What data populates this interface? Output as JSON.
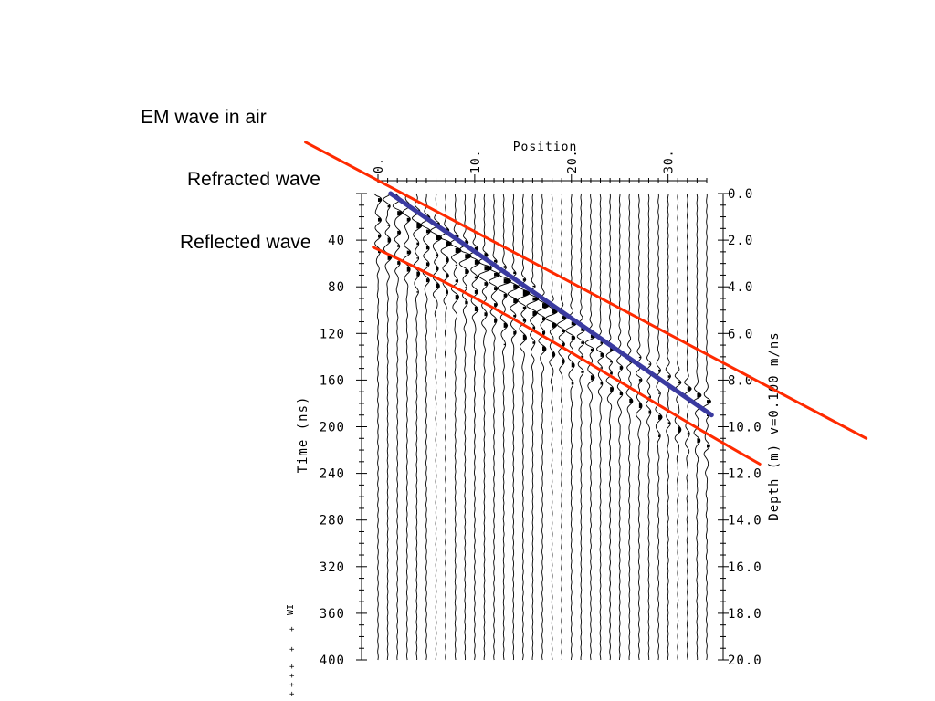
{
  "labels": {
    "em_wave": "EM wave in air",
    "refracted": "Refracted wave",
    "reflected": "Reflected wave"
  },
  "colors": {
    "em_line": "#ff2a00",
    "refracted_line": "#3a3aa0",
    "reflected_line": "#ff2a00",
    "trace": "#000000"
  },
  "chart_data": {
    "type": "radargram",
    "title": "Position",
    "xlabel": "Position",
    "ylabel_left": "Time (ns)",
    "ylabel_right": "Depth (m) v=0.100 m/ns",
    "x_ticks": [
      "0.",
      "10.",
      "20.",
      "30."
    ],
    "x_tick_values": [
      0,
      10,
      20,
      30
    ],
    "xlim": [
      0,
      34
    ],
    "trace_positions": [
      0,
      1,
      2,
      3,
      4,
      5,
      6,
      7,
      8,
      9,
      10,
      11,
      12,
      13,
      14,
      15,
      16,
      17,
      18,
      19,
      20,
      21,
      22,
      23,
      24,
      25,
      26,
      27,
      28,
      29,
      30,
      31,
      32,
      33,
      34
    ],
    "time_ticks": [
      "40",
      "80",
      "120",
      "160",
      "200",
      "240",
      "280",
      "320",
      "360",
      "400"
    ],
    "time_tick_values": [
      40,
      80,
      120,
      160,
      200,
      240,
      280,
      320,
      360,
      400
    ],
    "time_range": [
      0,
      400
    ],
    "depth_ticks": [
      "0.0",
      "2.0",
      "4.0",
      "6.0",
      "8.0",
      "10.0",
      "12.0",
      "14.0",
      "16.0",
      "18.0",
      "20.0"
    ],
    "depth_tick_values": [
      0,
      2,
      4,
      6,
      8,
      10,
      12,
      14,
      16,
      18,
      20
    ],
    "side_annotation": "WI",
    "annotations": [
      {
        "label": "EM wave in air",
        "x": [
          -7.5,
          50.5
        ],
        "t": [
          -44,
          210
        ]
      },
      {
        "label": "Refracted wave",
        "x": [
          1.3,
          34.5
        ],
        "t": [
          0,
          190
        ]
      },
      {
        "label": "Reflected wave",
        "x": [
          -0.5,
          39.5
        ],
        "t": [
          46,
          232
        ]
      }
    ]
  }
}
